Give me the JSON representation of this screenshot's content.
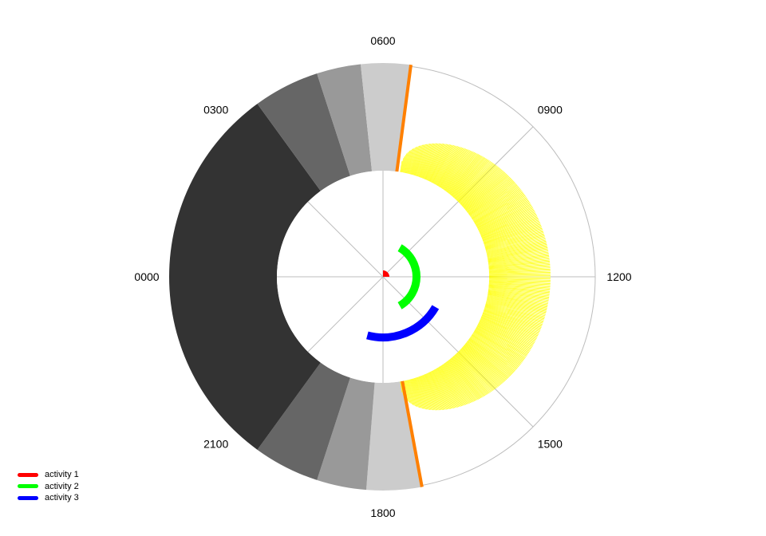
{
  "chart_data": {
    "type": "polar-clock",
    "clock_orientation": "0000 at left, 0600 at top, 1200 at right, 1800 at bottom",
    "hour_labels": [
      "0000",
      "0300",
      "0600",
      "0900",
      "1200",
      "1500",
      "1800",
      "2100"
    ],
    "spokes_every_hours": 3,
    "grid": true,
    "night_shading": {
      "colors": [
        "#cccccc",
        "#999999",
        "#666666",
        "#333333"
      ],
      "bands": [
        {
          "start": 17.3,
          "end": 18.3,
          "color": "#cccccc"
        },
        {
          "start": 18.3,
          "end": 19.2,
          "color": "#999999"
        },
        {
          "start": 19.2,
          "end": 20.4,
          "color": "#666666"
        },
        {
          "start": 20.4,
          "end": 3.6,
          "color": "#333333"
        },
        {
          "start": 3.6,
          "end": 4.8,
          "color": "#666666"
        },
        {
          "start": 4.8,
          "end": 5.6,
          "color": "#999999"
        },
        {
          "start": 5.6,
          "end": 6.5,
          "color": "#cccccc"
        }
      ]
    },
    "sunrise_marker": {
      "hour": 6.5,
      "color": "#ff8000"
    },
    "sunset_marker": {
      "hour": 17.3,
      "color": "#ff8000"
    },
    "daylight_arc": {
      "start": 6.6,
      "end": 17.4,
      "color": "#ffff00"
    },
    "series": [
      {
        "name": "activity 1",
        "color": "#ff0000",
        "start": 6.0,
        "end": 12.0,
        "ring": 1
      },
      {
        "name": "activity 2",
        "color": "#00ff00",
        "start": 8.0,
        "end": 16.0,
        "ring": 2
      },
      {
        "name": "activity 3",
        "color": "#0000ff",
        "start": 14.0,
        "end": 19.0,
        "ring": 3
      }
    ]
  },
  "legend": {
    "position": "bottom-left",
    "items": [
      {
        "label": "activity 1",
        "color": "#ff0000"
      },
      {
        "label": "activity 2",
        "color": "#00ff00"
      },
      {
        "label": "activity 3",
        "color": "#0000ff"
      }
    ]
  }
}
